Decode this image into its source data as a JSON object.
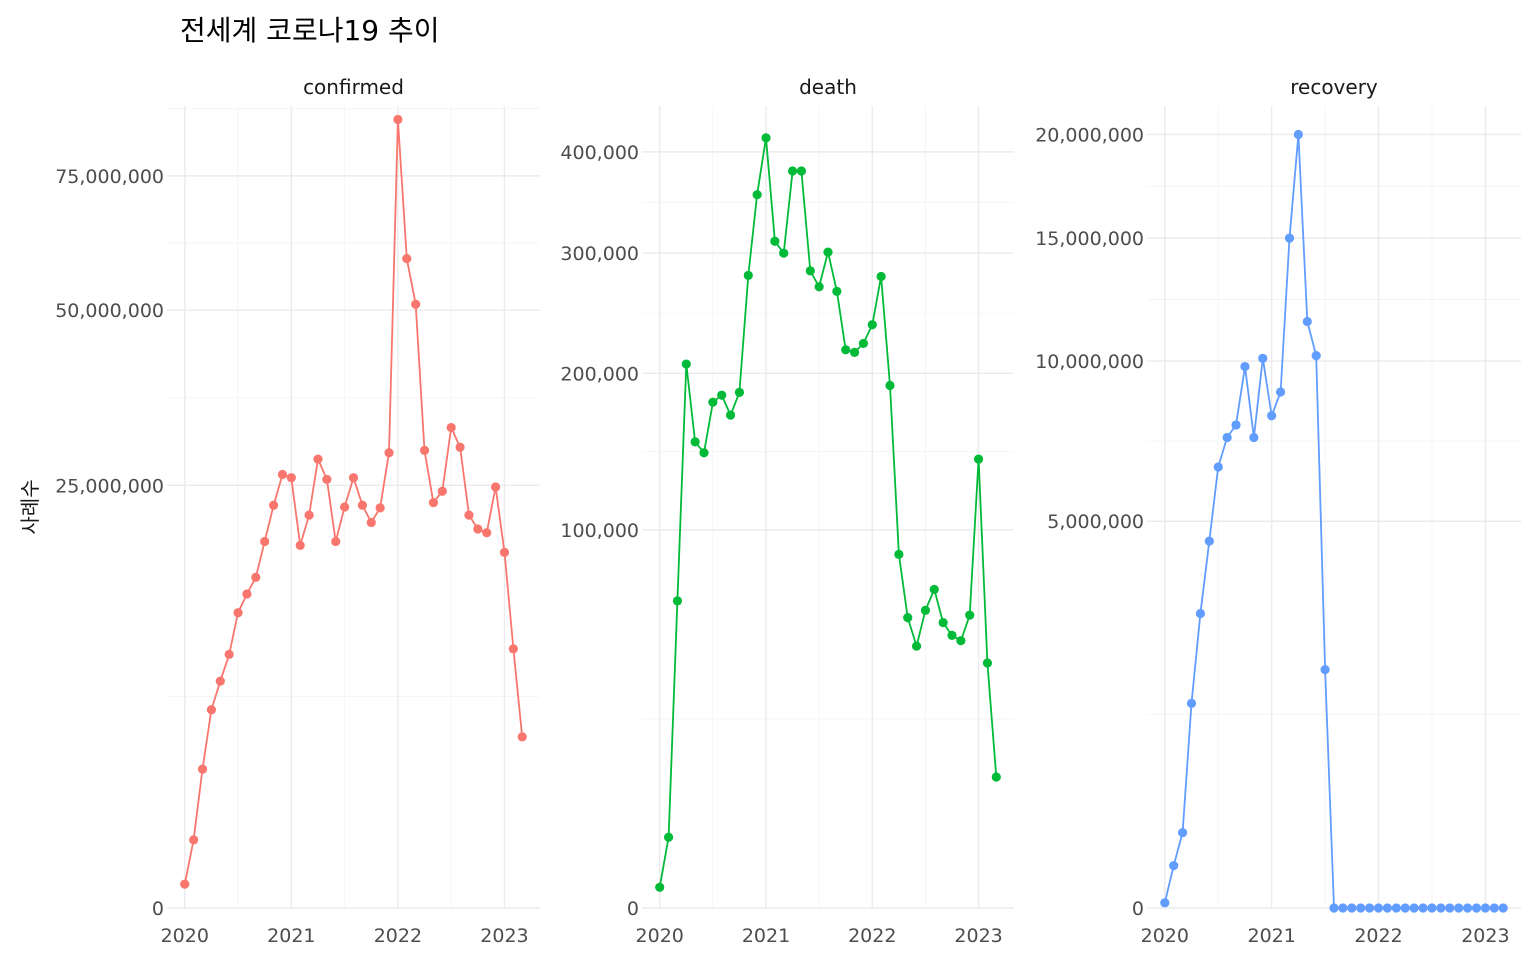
{
  "chart_data": {
    "type": "line",
    "title": "전세계 코로나19 추이",
    "ylabel": "사례수",
    "xlabel": "",
    "x_ticks": [
      "2020",
      "2021",
      "2022",
      "2023"
    ],
    "y_scale": "sqrt",
    "grid": true,
    "legend": "none",
    "x": [
      "2020-01",
      "2020-02",
      "2020-03",
      "2020-04",
      "2020-05",
      "2020-06",
      "2020-07",
      "2020-08",
      "2020-09",
      "2020-10",
      "2020-11",
      "2020-12",
      "2021-01",
      "2021-02",
      "2021-03",
      "2021-04",
      "2021-05",
      "2021-06",
      "2021-07",
      "2021-08",
      "2021-09",
      "2021-10",
      "2021-11",
      "2021-12",
      "2022-01",
      "2022-02",
      "2022-03",
      "2022-04",
      "2022-05",
      "2022-06",
      "2022-07",
      "2022-08",
      "2022-09",
      "2022-10",
      "2022-11",
      "2022-12",
      "2023-01",
      "2023-02",
      "2023-03"
    ],
    "series": [
      {
        "name": "confirmed",
        "color": "#F8766D",
        "yticks": [
          0,
          25000000,
          50000000,
          75000000
        ],
        "ytick_labels": [
          "0",
          "25,000,000",
          "50,000,000",
          "75,000,000"
        ],
        "ylim": [
          0,
          90000000
        ],
        "values": [
          80000,
          650000,
          2700000,
          5500000,
          7200000,
          9000000,
          12200000,
          13800000,
          15300000,
          18800000,
          22700000,
          26300000,
          25900000,
          18400000,
          21600000,
          28200000,
          25700000,
          18800000,
          22500000,
          25900000,
          22700000,
          20800000,
          22400000,
          29000000,
          87000000,
          59000000,
          51000000,
          29300000,
          23000000,
          24300000,
          32300000,
          29700000,
          21600000,
          20100000,
          19700000,
          24800000,
          17700000,
          9400000,
          4100000
        ]
      },
      {
        "name": "death",
        "color": "#00BA38",
        "yticks": [
          0,
          100000,
          200000,
          300000,
          400000
        ],
        "ytick_labels": [
          "0",
          "100,000",
          "200,000",
          "300,000",
          "400,000"
        ],
        "ylim": [
          0,
          450000
        ],
        "values": [
          300,
          3500,
          66000,
          207000,
          152000,
          145000,
          179000,
          184000,
          170000,
          186000,
          280000,
          356000,
          415000,
          311000,
          300000,
          380000,
          380000,
          284000,
          270000,
          301000,
          266000,
          218000,
          216000,
          223000,
          238000,
          279000,
          191000,
          87500,
          59000,
          48000,
          62000,
          71000,
          57000,
          52000,
          50000,
          60000,
          141000,
          42000,
          12000
        ]
      },
      {
        "name": "recovery",
        "color": "#619CFF",
        "yticks": [
          0,
          5000000,
          10000000,
          15000000,
          20000000
        ],
        "ytick_labels": [
          "0",
          "5,000,000",
          "10,000,000",
          "15,000,000",
          "20,000,000"
        ],
        "ylim": [
          0,
          21500000
        ],
        "values": [
          900,
          60000,
          190000,
          1400000,
          2900000,
          4500000,
          6500000,
          7400000,
          7800000,
          9800000,
          7400000,
          10100000,
          8100000,
          8900000,
          15000000,
          20000000,
          11500000,
          10200000,
          1900000,
          0,
          0,
          0,
          0,
          0,
          0,
          0,
          0,
          0,
          0,
          0,
          0,
          0,
          0,
          0,
          0,
          0,
          0,
          0,
          0
        ]
      }
    ]
  }
}
